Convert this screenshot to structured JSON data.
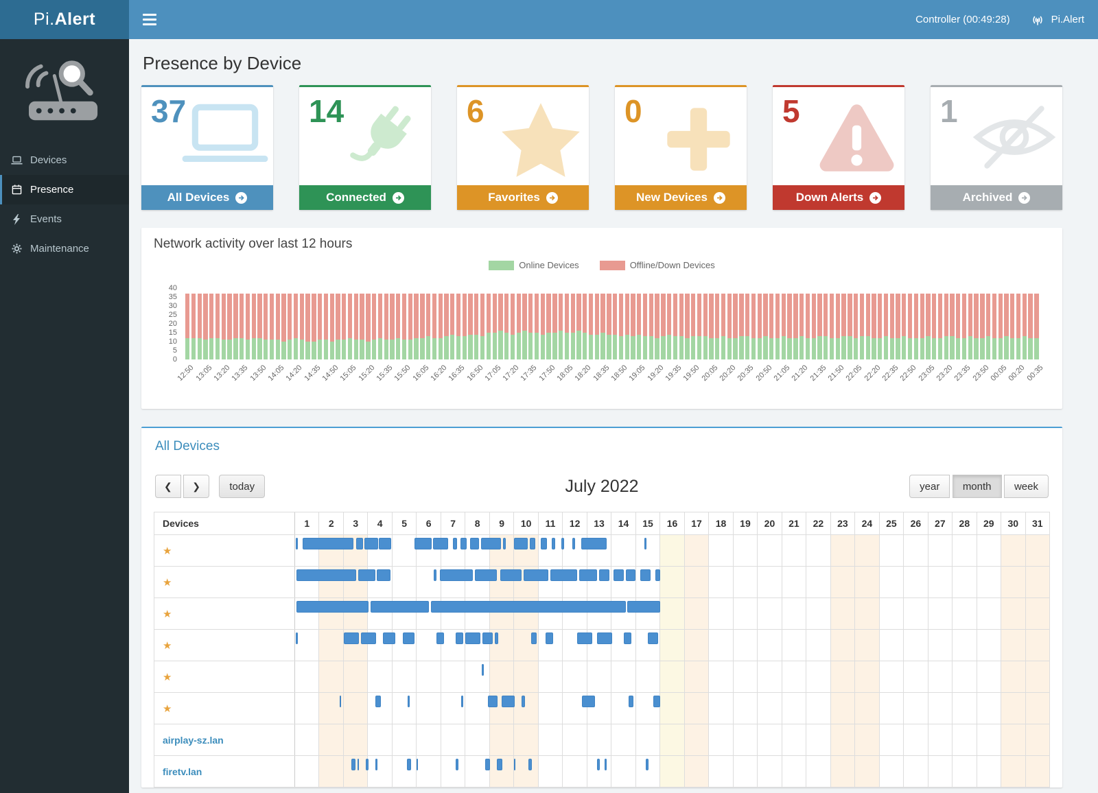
{
  "app": {
    "logo_prefix": "Pi.",
    "logo_suffix": "Alert",
    "controller_status": "Controller (00:49:28)",
    "brand": "Pi.Alert"
  },
  "sidebar": {
    "items": [
      {
        "label": "Devices",
        "icon": "laptop-icon"
      },
      {
        "label": "Presence",
        "icon": "calendar-icon",
        "active": true
      },
      {
        "label": "Events",
        "icon": "bolt-icon"
      },
      {
        "label": "Maintenance",
        "icon": "gear-icon"
      }
    ]
  },
  "page": {
    "title": "Presence by Device"
  },
  "cards": [
    {
      "count": "37",
      "label": "All Devices",
      "color": "#4e91bd",
      "icon": "laptop-icon",
      "icon_color": "#c8e4f2"
    },
    {
      "count": "14",
      "label": "Connected",
      "color": "#2e9356",
      "icon": "plug-icon",
      "icon_color": "#cdeacf"
    },
    {
      "count": "6",
      "label": "Favorites",
      "color": "#dd9426",
      "icon": "star-icon",
      "icon_color": "#f7e1ba"
    },
    {
      "count": "0",
      "label": "New Devices",
      "color": "#dd9426",
      "icon": "plus-icon",
      "icon_color": "#f7e1ba"
    },
    {
      "count": "5",
      "label": "Down Alerts",
      "color": "#c0392f",
      "icon": "warning-icon",
      "icon_color": "#eec9c4"
    },
    {
      "count": "1",
      "label": "Archived",
      "color": "#a7adb1",
      "icon": "eye-slash-icon",
      "icon_color": "#e3e6e8"
    }
  ],
  "chart_data": {
    "type": "bar",
    "stacked": true,
    "title": "Network activity over last 12 hours",
    "y_ticks": [
      0,
      5,
      10,
      15,
      20,
      25,
      30,
      35,
      40
    ],
    "y_max": 40,
    "x_tick_every": 3,
    "x_tick_labels": [
      "12:50",
      "13:05",
      "13:20",
      "13:35",
      "13:50",
      "14:05",
      "14:20",
      "14:35",
      "14:50",
      "15:05",
      "15:20",
      "15:35",
      "15:50",
      "16:05",
      "16:20",
      "16:35",
      "16:50",
      "17:05",
      "17:20",
      "17:35",
      "17:50",
      "18:05",
      "18:20",
      "18:35",
      "18:50",
      "19:05",
      "19:20",
      "19:35",
      "19:50",
      "20:05",
      "20:20",
      "20:35",
      "20:50",
      "21:05",
      "21:20",
      "21:35",
      "21:50",
      "22:05",
      "22:20",
      "22:35",
      "22:50",
      "23:05",
      "23:20",
      "23:35",
      "23:50",
      "00:05",
      "00:20",
      "00:35"
    ],
    "series": [
      {
        "name": "Online Devices",
        "color": "#a3d6a3",
        "values": [
          12,
          12,
          12,
          11,
          12,
          12,
          11,
          11,
          12,
          12,
          11,
          12,
          12,
          11,
          11,
          11,
          10,
          11,
          12,
          11,
          10,
          10,
          11,
          11,
          10,
          11,
          11,
          12,
          11,
          11,
          10,
          11,
          12,
          11,
          11,
          12,
          11,
          11,
          12,
          12,
          13,
          12,
          12,
          13,
          14,
          13,
          13,
          14,
          14,
          13,
          15,
          15,
          16,
          15,
          14,
          15,
          16,
          15,
          15,
          14,
          15,
          15,
          16,
          15,
          15,
          16,
          15,
          14,
          14,
          15,
          14,
          14,
          13,
          14,
          13,
          14,
          13,
          13,
          12,
          13,
          14,
          13,
          13,
          12,
          13,
          13,
          13,
          12,
          12,
          13,
          12,
          12,
          13,
          13,
          12,
          12,
          13,
          12,
          12,
          13,
          12,
          12,
          13,
          12,
          12,
          13,
          13,
          12,
          12,
          13,
          13,
          12,
          13,
          13,
          12,
          12,
          13,
          12,
          12,
          13,
          12,
          12,
          12,
          13,
          12,
          12,
          13,
          13,
          12,
          12,
          13,
          12,
          12,
          13,
          12,
          12,
          13,
          12,
          12,
          13,
          12,
          12
        ]
      },
      {
        "name": "Offline/Down Devices",
        "color": "#e89a91",
        "values": [
          25,
          25,
          25,
          26,
          25,
          25,
          26,
          26,
          25,
          25,
          26,
          25,
          25,
          26,
          26,
          26,
          27,
          26,
          25,
          26,
          27,
          27,
          26,
          26,
          27,
          26,
          26,
          25,
          26,
          26,
          27,
          26,
          25,
          26,
          26,
          25,
          26,
          26,
          25,
          25,
          24,
          25,
          25,
          24,
          23,
          24,
          24,
          23,
          23,
          24,
          22,
          22,
          21,
          22,
          23,
          22,
          21,
          22,
          22,
          23,
          22,
          22,
          21,
          22,
          22,
          21,
          22,
          23,
          23,
          22,
          23,
          23,
          24,
          23,
          24,
          23,
          24,
          24,
          25,
          24,
          23,
          24,
          24,
          25,
          24,
          24,
          24,
          25,
          25,
          24,
          25,
          25,
          24,
          24,
          25,
          25,
          24,
          25,
          25,
          24,
          25,
          25,
          24,
          25,
          25,
          24,
          24,
          25,
          25,
          24,
          24,
          25,
          24,
          24,
          25,
          25,
          24,
          25,
          25,
          24,
          25,
          25,
          25,
          24,
          25,
          25,
          24,
          24,
          25,
          25,
          24,
          25,
          25,
          24,
          25,
          25,
          24,
          25,
          25,
          24,
          25,
          25
        ]
      }
    ]
  },
  "icons": {
    "star": "★"
  },
  "calendar": {
    "heading": "All Devices",
    "devices_header": "Devices",
    "toolbar": {
      "prev_icon": "❮",
      "next_icon": "❯",
      "today_label": "today",
      "title": "July 2022",
      "views": [
        "year",
        "month",
        "week"
      ],
      "active_view": "month"
    },
    "days": 31,
    "day_numbers": [
      1,
      2,
      3,
      4,
      5,
      6,
      7,
      8,
      9,
      10,
      11,
      12,
      13,
      14,
      15,
      16,
      17,
      18,
      19,
      20,
      21,
      22,
      23,
      24,
      25,
      26,
      27,
      28,
      29,
      30,
      31
    ],
    "weekend_days": [
      2,
      3,
      9,
      10,
      16,
      17,
      23,
      24,
      30,
      31
    ],
    "today_day": 16,
    "event_color": "#4a8fd0",
    "rows": [
      {
        "favorite": true,
        "name": "",
        "segments": [
          [
            0.02,
            0.1
          ],
          [
            0.3,
            2.4
          ],
          [
            2.5,
            2.78
          ],
          [
            2.85,
            3.4
          ],
          [
            3.45,
            3.95
          ],
          [
            4.9,
            5.62
          ],
          [
            5.68,
            6.3
          ],
          [
            6.5,
            6.66
          ],
          [
            6.8,
            7.05
          ],
          [
            7.2,
            7.56
          ],
          [
            7.64,
            8.45
          ],
          [
            8.55,
            8.66
          ],
          [
            9.0,
            9.55
          ],
          [
            9.65,
            9.86
          ],
          [
            10.1,
            10.36
          ],
          [
            10.55,
            10.7
          ],
          [
            10.95,
            11.06
          ],
          [
            11.4,
            11.5
          ],
          [
            11.75,
            12.8
          ],
          [
            14.35,
            14.45
          ]
        ]
      },
      {
        "favorite": true,
        "name": "",
        "segments": [
          [
            0.05,
            2.52
          ],
          [
            2.6,
            3.3
          ],
          [
            3.36,
            3.92
          ],
          [
            5.7,
            5.8
          ],
          [
            5.95,
            7.3
          ],
          [
            7.4,
            8.3
          ],
          [
            8.42,
            9.3
          ],
          [
            9.4,
            10.42
          ],
          [
            10.5,
            11.6
          ],
          [
            11.68,
            12.42
          ],
          [
            12.5,
            12.92
          ],
          [
            13.1,
            13.52
          ],
          [
            13.6,
            14.0
          ],
          [
            14.2,
            14.62
          ],
          [
            14.8,
            15.02
          ]
        ]
      },
      {
        "favorite": true,
        "name": "",
        "segments": [
          [
            0.05,
            3.02
          ],
          [
            3.1,
            5.5
          ],
          [
            5.58,
            13.6
          ],
          [
            13.66,
            15.02
          ]
        ]
      },
      {
        "favorite": true,
        "name": "",
        "segments": [
          [
            0.02,
            0.12
          ],
          [
            2.0,
            2.62
          ],
          [
            2.7,
            3.32
          ],
          [
            3.6,
            4.12
          ],
          [
            4.42,
            4.92
          ],
          [
            5.8,
            6.12
          ],
          [
            6.6,
            6.92
          ],
          [
            7.0,
            7.62
          ],
          [
            7.7,
            8.12
          ],
          [
            8.2,
            8.36
          ],
          [
            9.7,
            9.92
          ],
          [
            10.3,
            10.62
          ],
          [
            11.6,
            12.22
          ],
          [
            12.4,
            13.02
          ],
          [
            13.5,
            13.82
          ],
          [
            14.5,
            14.92
          ]
        ]
      },
      {
        "favorite": true,
        "name": "",
        "segments": [
          [
            7.68,
            7.76
          ]
        ]
      },
      {
        "favorite": true,
        "name": "",
        "segments": [
          [
            1.82,
            1.9
          ],
          [
            3.3,
            3.52
          ],
          [
            4.62,
            4.72
          ],
          [
            6.82,
            6.9
          ],
          [
            7.92,
            8.32
          ],
          [
            8.5,
            9.02
          ],
          [
            9.32,
            9.46
          ],
          [
            11.8,
            12.32
          ],
          [
            13.72,
            13.92
          ],
          [
            14.72,
            15.02
          ]
        ]
      },
      {
        "favorite": false,
        "name": "airplay-sz.lan",
        "segments": []
      },
      {
        "favorite": false,
        "name": "firetv.lan",
        "segments": [
          [
            2.3,
            2.48
          ],
          [
            2.56,
            2.62
          ],
          [
            2.9,
            3.02
          ],
          [
            3.3,
            3.38
          ],
          [
            4.6,
            4.78
          ],
          [
            5.0,
            5.06
          ],
          [
            6.6,
            6.72
          ],
          [
            7.8,
            8.02
          ],
          [
            8.3,
            8.52
          ],
          [
            9.0,
            9.06
          ],
          [
            9.6,
            9.72
          ],
          [
            12.4,
            12.52
          ],
          [
            12.72,
            12.82
          ],
          [
            14.4,
            14.52
          ]
        ]
      }
    ]
  }
}
